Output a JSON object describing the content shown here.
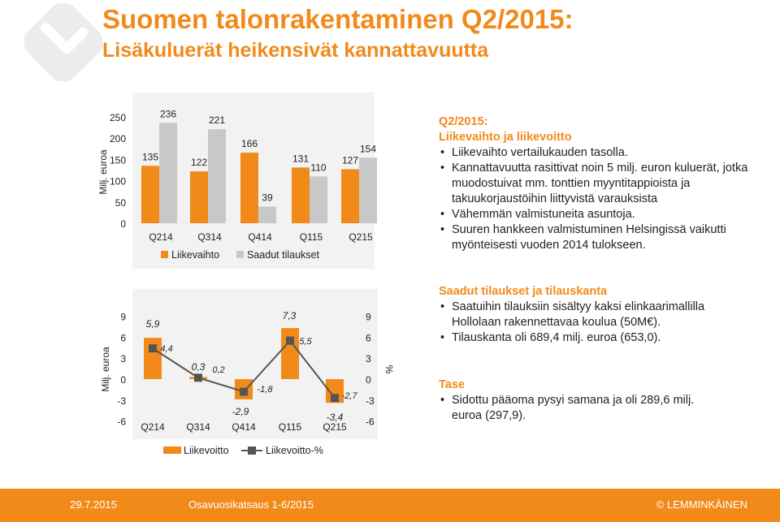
{
  "header": {
    "title": "Suomen talonrakentaminen Q2/2015:",
    "subtitle": "Lisäkuluerät heikensivät kannattavuutta"
  },
  "colors": {
    "accent": "#f28a1a",
    "gray": "#c8c8c8",
    "line": "#555555",
    "text": "#222222"
  },
  "chart_data": [
    {
      "type": "bar",
      "categories": [
        "Q214",
        "Q314",
        "Q414",
        "Q115",
        "Q215"
      ],
      "series": [
        {
          "name": "Liikevaihto",
          "values": [
            135,
            122,
            166,
            131,
            127
          ],
          "labels": [
            "135",
            "122",
            "166",
            "131",
            "127"
          ]
        },
        {
          "name": "Saadut tilaukset",
          "values": [
            236,
            221,
            39,
            110,
            154
          ],
          "labels": [
            "236",
            "221",
            "39",
            "110",
            "154"
          ]
        }
      ],
      "ylabel": "Milj. euroa",
      "ylim": [
        0,
        250
      ],
      "yticks": [
        "0",
        "50",
        "100",
        "150",
        "200",
        "250"
      ],
      "legend": "bottom"
    },
    {
      "type": "bar",
      "categories": [
        "Q214",
        "Q314",
        "Q414",
        "Q115",
        "Q215"
      ],
      "series": [
        {
          "name": "Liikevoitto",
          "values": [
            5.9,
            0.3,
            -2.9,
            7.3,
            -3.4
          ],
          "labels": [
            "5,9",
            "0,3",
            "-2,9",
            "7,3",
            "-3,4"
          ]
        },
        {
          "name": "Liikevoitto-%",
          "values": [
            4.4,
            0.2,
            -1.8,
            5.5,
            -2.7
          ],
          "labels": [
            "4,4",
            "0,2",
            "-1,8",
            "5,5",
            "-2,7"
          ],
          "axis": "right"
        }
      ],
      "ylabel": "Milj. euroa",
      "y2label": "%",
      "ylim": [
        -6,
        9
      ],
      "yticks": [
        "-6",
        "-3",
        "0",
        "3",
        "6",
        "9"
      ],
      "y2ticks": [
        "-6",
        "-3",
        "0",
        "3",
        "6",
        "9"
      ],
      "legend": "bottom"
    }
  ],
  "panel_top": {
    "heading1": "Q2/2015:",
    "heading2": "Liikevaihto ja liikevoitto",
    "bullets": [
      "Liikevaihto vertailukauden tasolla.",
      "Kannattavuutta rasittivat noin 5 milj. euron kuluerät, jotka muodostuivat mm. tonttien myyntitappioista ja takuukorjaustöihin liittyvistä varauksista",
      "Vähemmän valmistuneita asuntoja.",
      "Suuren hankkeen valmistuminen Helsingissä vaikutti myönteisesti vuoden 2014 tulokseen."
    ]
  },
  "panel_orders": {
    "heading": "Saadut tilaukset ja tilauskanta",
    "bullets": [
      "Saatuihin tilauksiin sisältyy kaksi elinkaarimallilla Hollolaan rakennettavaa koulua (50M€).",
      "Tilauskanta oli 689,4 milj. euroa (653,0)."
    ]
  },
  "panel_tase": {
    "heading": "Tase",
    "bullets": [
      "Sidottu pääoma pysyi samana ja oli 289,6 milj. euroa (297,9)."
    ]
  },
  "footer": {
    "date": "29.7.2015",
    "doc": "Osavuosikatsaus 1-6/2015",
    "brand": "© LEMMINKÄINEN"
  }
}
